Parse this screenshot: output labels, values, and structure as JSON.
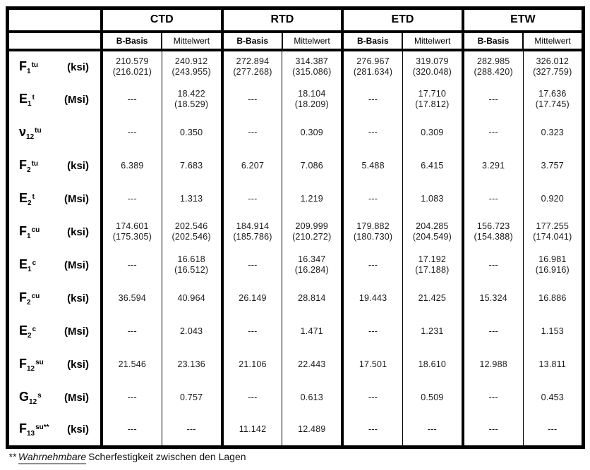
{
  "page": {
    "background": "#ffffff",
    "border_color": "#000000",
    "text_color": "#000000"
  },
  "table": {
    "groups": [
      "CTD",
      "RTD",
      "ETD",
      "ETW"
    ],
    "subheaders": [
      "B-Basis",
      "Mittelwert"
    ],
    "rows": [
      {
        "id": "F1tu",
        "symbol": {
          "base": "F",
          "sub": "1",
          "sup": "tu"
        },
        "unit": "(ksi)",
        "cells": [
          [
            "210.579",
            "(216.021)"
          ],
          [
            "240.912",
            "(243.955)"
          ],
          [
            "272.894",
            "(277.268)"
          ],
          [
            "314.387",
            "(315.086)"
          ],
          [
            "276.967",
            "(281.634)"
          ],
          [
            "319.079",
            "(320.048)"
          ],
          [
            "282.985",
            "(288.420)"
          ],
          [
            "326.012",
            "(327.759)"
          ]
        ]
      },
      {
        "id": "E1t",
        "symbol": {
          "base": "E",
          "sub": "1",
          "sup": "t"
        },
        "unit": "(Msi)",
        "cells": [
          [
            "---"
          ],
          [
            "18.422",
            "(18.529)"
          ],
          [
            "---"
          ],
          [
            "18.104",
            "(18.209)"
          ],
          [
            "---"
          ],
          [
            "17.710",
            "(17.812)"
          ],
          [
            "---"
          ],
          [
            "17.636",
            "(17.745)"
          ]
        ]
      },
      {
        "id": "nu12tu",
        "symbol": {
          "base": "ν",
          "sub": "12",
          "sup": "tu"
        },
        "unit": "",
        "cells": [
          [
            "---"
          ],
          [
            "0.350"
          ],
          [
            "---"
          ],
          [
            "0.309"
          ],
          [
            "---"
          ],
          [
            "0.309"
          ],
          [
            "---"
          ],
          [
            "0.323"
          ]
        ]
      },
      {
        "id": "F2tu",
        "symbol": {
          "base": "F",
          "sub": "2",
          "sup": "tu"
        },
        "unit": "(ksi)",
        "cells": [
          [
            "6.389"
          ],
          [
            "7.683"
          ],
          [
            "6.207"
          ],
          [
            "7.086"
          ],
          [
            "5.488"
          ],
          [
            "6.415"
          ],
          [
            "3.291"
          ],
          [
            "3.757"
          ]
        ]
      },
      {
        "id": "E2t",
        "symbol": {
          "base": "E",
          "sub": "2",
          "sup": "t"
        },
        "unit": "(Msi)",
        "cells": [
          [
            "---"
          ],
          [
            "1.313"
          ],
          [
            "---"
          ],
          [
            "1.219"
          ],
          [
            "---"
          ],
          [
            "1.083"
          ],
          [
            "---"
          ],
          [
            "0.920"
          ]
        ]
      },
      {
        "id": "F1cu",
        "symbol": {
          "base": "F",
          "sub": "1",
          "sup": "cu"
        },
        "unit": "(ksi)",
        "cells": [
          [
            "174.601",
            "(175.305)"
          ],
          [
            "202.546",
            "(202.546)"
          ],
          [
            "184.914",
            "(185.786)"
          ],
          [
            "209.999",
            "(210.272)"
          ],
          [
            "179.882",
            "(180.730)"
          ],
          [
            "204.285",
            "(204.549)"
          ],
          [
            "156.723",
            "(154.388)"
          ],
          [
            "177.255",
            "(174.041)"
          ]
        ]
      },
      {
        "id": "E1c",
        "symbol": {
          "base": "E",
          "sub": "1",
          "sup": "c"
        },
        "unit": "(Msi)",
        "cells": [
          [
            "---"
          ],
          [
            "16.618",
            "(16.512)"
          ],
          [
            "---"
          ],
          [
            "16.347",
            "(16.284)"
          ],
          [
            "---"
          ],
          [
            "17.192",
            "(17.188)"
          ],
          [
            "---"
          ],
          [
            "16.981",
            "(16.916)"
          ]
        ]
      },
      {
        "id": "F2cu",
        "symbol": {
          "base": "F",
          "sub": "2",
          "sup": "cu"
        },
        "unit": "(ksi)",
        "cells": [
          [
            "36.594"
          ],
          [
            "40.964"
          ],
          [
            "26.149"
          ],
          [
            "28.814"
          ],
          [
            "19.443"
          ],
          [
            "21.425"
          ],
          [
            "15.324"
          ],
          [
            "16.886"
          ]
        ]
      },
      {
        "id": "E2c",
        "symbol": {
          "base": "E",
          "sub": "2",
          "sup": "c"
        },
        "unit": "(Msi)",
        "cells": [
          [
            "---"
          ],
          [
            "2.043"
          ],
          [
            "---"
          ],
          [
            "1.471"
          ],
          [
            "---"
          ],
          [
            "1.231"
          ],
          [
            "---"
          ],
          [
            "1.153"
          ]
        ]
      },
      {
        "id": "F12su",
        "symbol": {
          "base": "F",
          "sub": "12",
          "sup": "su"
        },
        "unit": "(ksi)",
        "cells": [
          [
            "21.546"
          ],
          [
            "23.136"
          ],
          [
            "21.106"
          ],
          [
            "22.443"
          ],
          [
            "17.501"
          ],
          [
            "18.610"
          ],
          [
            "12.988"
          ],
          [
            "13.811"
          ]
        ]
      },
      {
        "id": "G12s",
        "symbol": {
          "base": "G",
          "sub": "12",
          "sup": "s"
        },
        "unit": "(Msi)",
        "cells": [
          [
            "---"
          ],
          [
            "0.757"
          ],
          [
            "---"
          ],
          [
            "0.613"
          ],
          [
            "---"
          ],
          [
            "0.509"
          ],
          [
            "---"
          ],
          [
            "0.453"
          ]
        ]
      },
      {
        "id": "F13su",
        "symbol": {
          "base": "F",
          "sub": "13",
          "sup": "su**"
        },
        "unit": "(ksi)",
        "cells": [
          [
            "---"
          ],
          [
            "---"
          ],
          [
            "11.142"
          ],
          [
            "12.489"
          ],
          [
            "---"
          ],
          [
            "---"
          ],
          [
            "---"
          ],
          [
            "---"
          ]
        ]
      }
    ],
    "footnote": {
      "marker": "**",
      "emphasis": "Wahrnehmbare",
      "text": "Scherfestigkeit zwischen den Lagen"
    }
  }
}
